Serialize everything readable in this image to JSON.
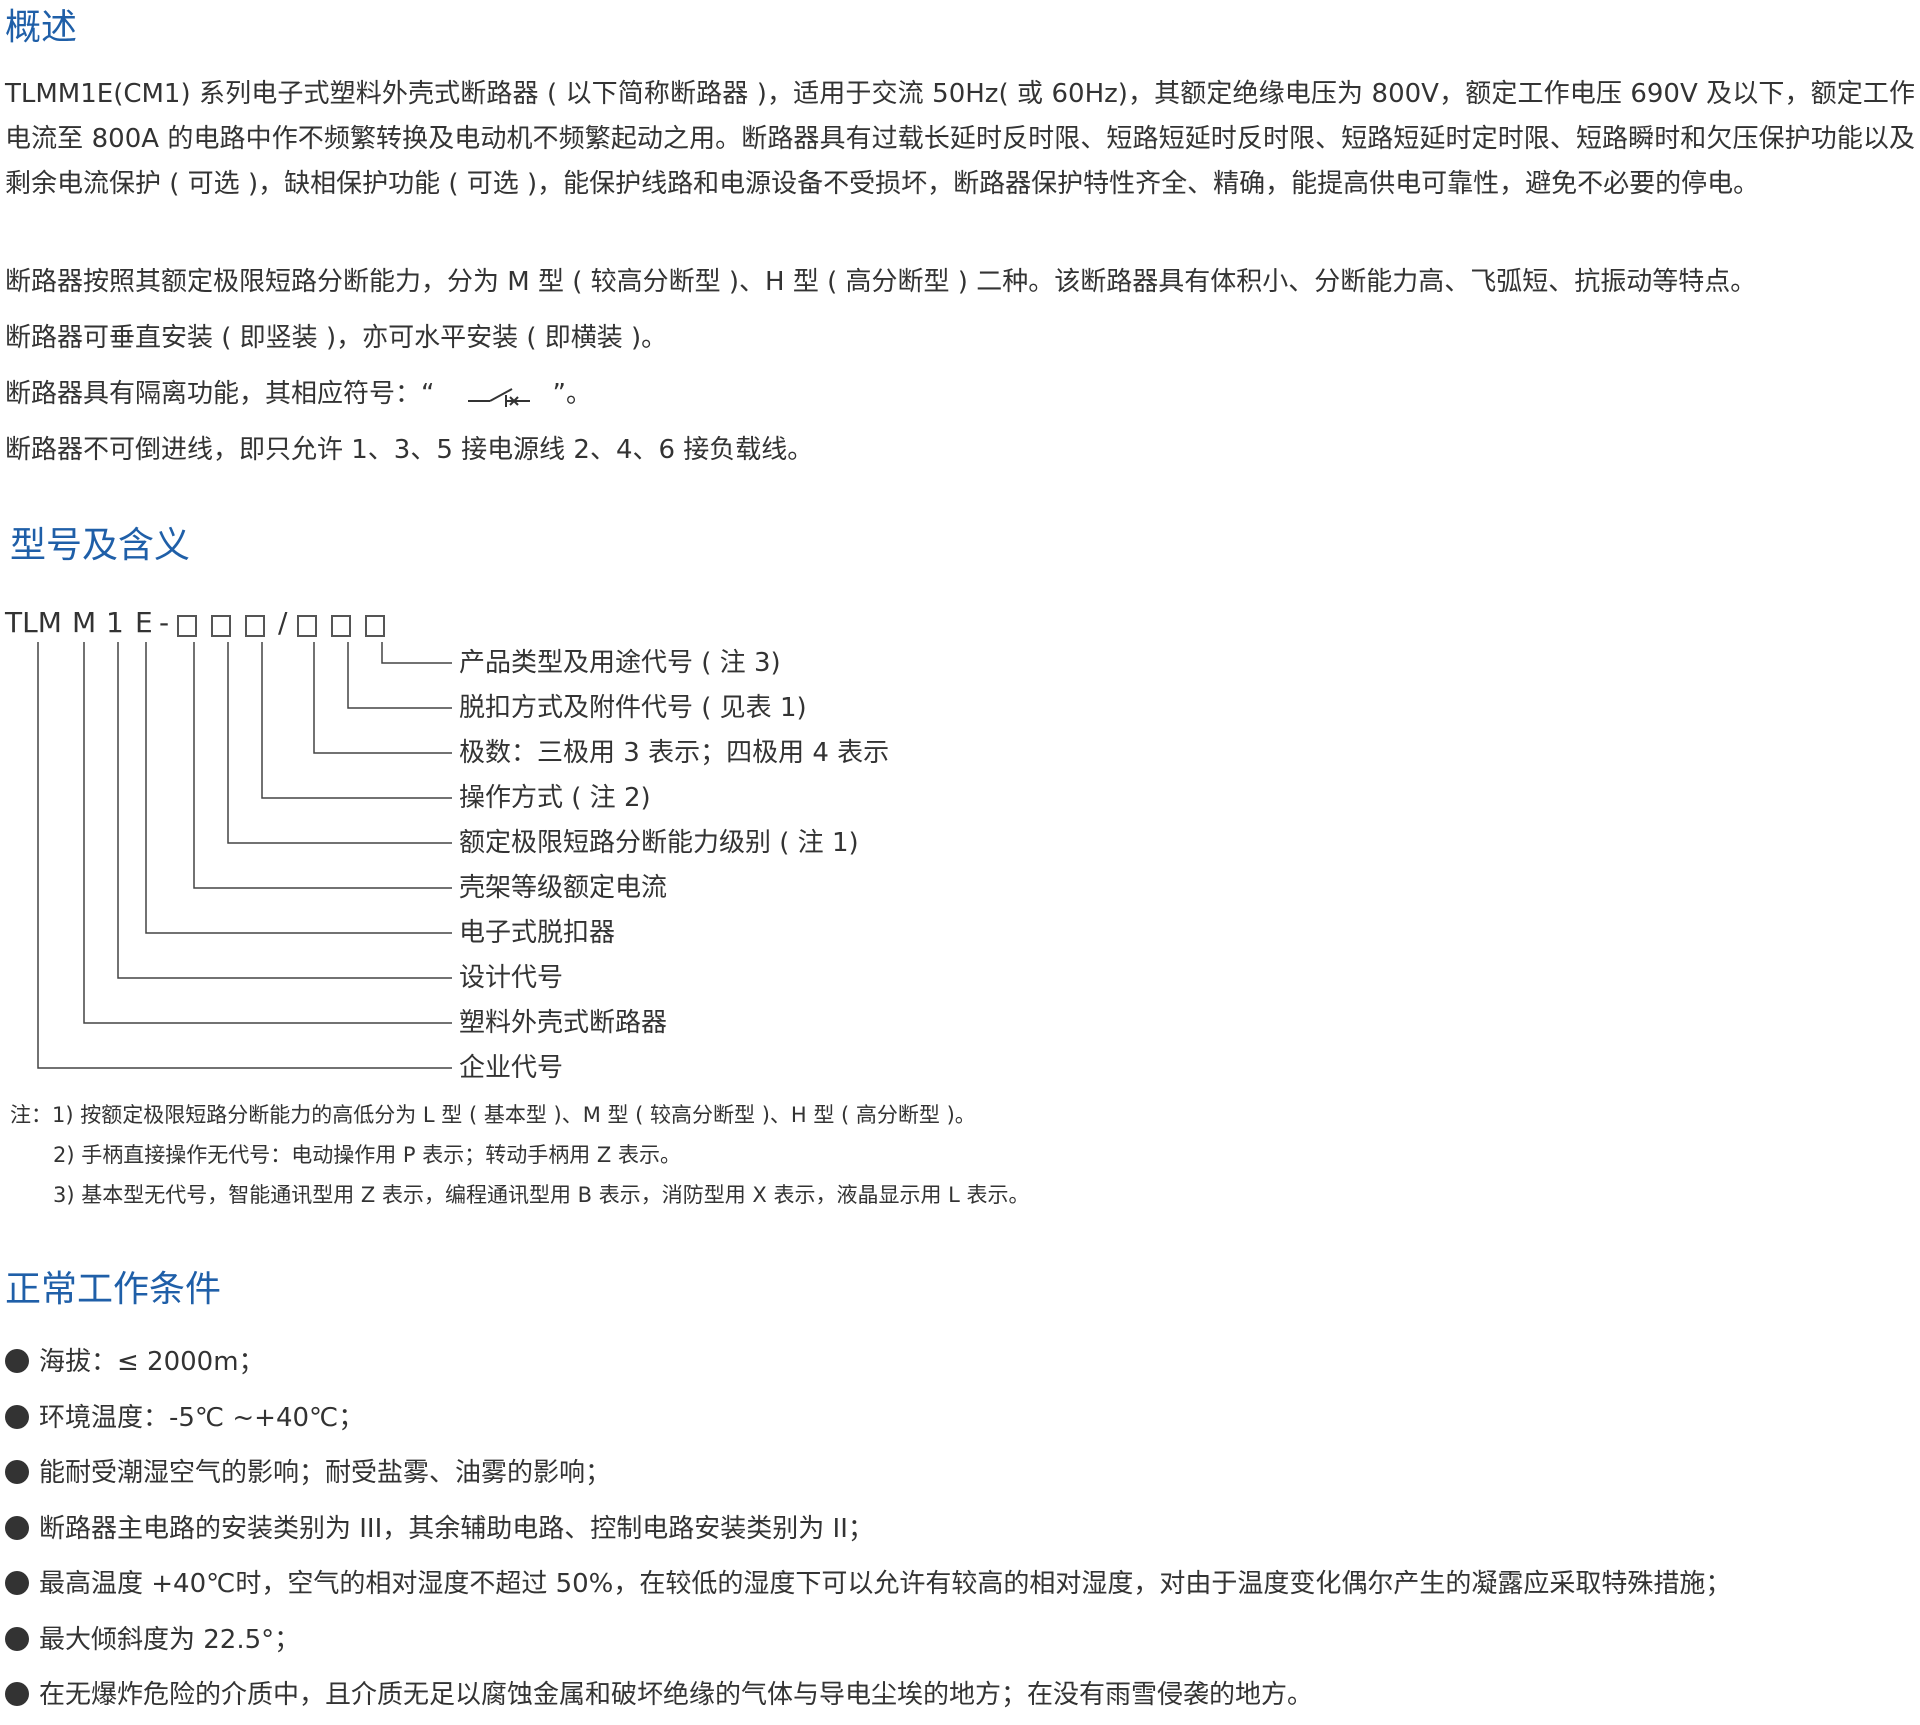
{
  "overview": {
    "title": "概述",
    "paragraphs": [
      "TLMM1E(CM1) 系列电子式塑料外壳式断路器 ( 以下简称断路器 )，适用于交流 50Hz( 或 60Hz)，其额定绝缘电压为 800V，额定工作电压 690V 及以下，额定工作电流至 800A 的电路中作不频繁转换及电动机不频繁起动之用。断路器具有过载长延时反时限、短路短延时反时限、短路短延时定时限、短路瞬时和欠压保护功能以及剩余电流保护 ( 可选 )，缺相保护功能 ( 可选 )，能保护线路和电源设备不受损坏，断路器保护特性齐全、精确，能提高供电可靠性，避免不必要的停电。",
      "断路器按照其额定极限短路分断能力，分为 M 型 ( 较高分断型 )、H 型 ( 高分断型 ) 二种。该断路器具有体积小、分断能力高、飞弧短、抗振动等特点。",
      "断路器可垂直安装 ( 即竖装 )，亦可水平安装 ( 即横装 )。"
    ],
    "isolation_prefix": "断路器具有隔离功能，其相应符号：“",
    "isolation_suffix": "”。",
    "wiring": "断路器不可倒进线，即只允许 1、3、5 接电源线 2、4、6 接负载线。"
  },
  "model": {
    "title": "型号及含义",
    "code": {
      "prefix": "TLM",
      "m": "M",
      "one": "1",
      "e": "E",
      "dash": "-",
      "slash": "/"
    },
    "labels": [
      "产品类型及用途代号 ( 注 3)",
      "脱扣方式及附件代号 ( 见表 1)",
      "极数：三极用 3 表示；四极用 4 表示",
      "操作方式 ( 注 2)",
      "额定极限短路分断能力级别 ( 注 1)",
      "壳架等级额定电流",
      "电子式脱扣器",
      "设计代号",
      "塑料外壳式断路器",
      "企业代号"
    ],
    "notes": [
      "注：1) 按额定极限短路分断能力的高低分为 L 型 ( 基本型 )、M 型 ( 较高分断型 )、H 型 ( 高分断型 )。",
      "2) 手柄直接操作无代号：电动操作用 P 表示；转动手柄用 Z 表示。",
      "3) 基本型无代号，智能通讯型用 Z 表示，编程通讯型用 B 表示，消防型用 X 表示，液晶显示用 L 表示。"
    ]
  },
  "conditions": {
    "title": "正常工作条件",
    "items": [
      "海拔：≤ 2000m；",
      "环境温度：-5℃ ~+40℃；",
      "能耐受潮湿空气的影响；耐受盐雾、油雾的影响；",
      "断路器主电路的安装类别为 III，其余辅助电路、控制电路安装类别为 II；",
      "最高温度 +40℃时，空气的相对湿度不超过 50%，在较低的湿度下可以允许有较高的相对湿度，对由于温度变化偶尔产生的凝露应采取特殊措施；",
      "最大倾斜度为 22.5°；",
      "在无爆炸危险的介质中，且介质无足以腐蚀金属和破坏绝缘的气体与导电尘埃的地方；在没有雨雪侵袭的地方。"
    ]
  },
  "colors": {
    "heading": "#1f5fa8",
    "text": "#333333"
  }
}
